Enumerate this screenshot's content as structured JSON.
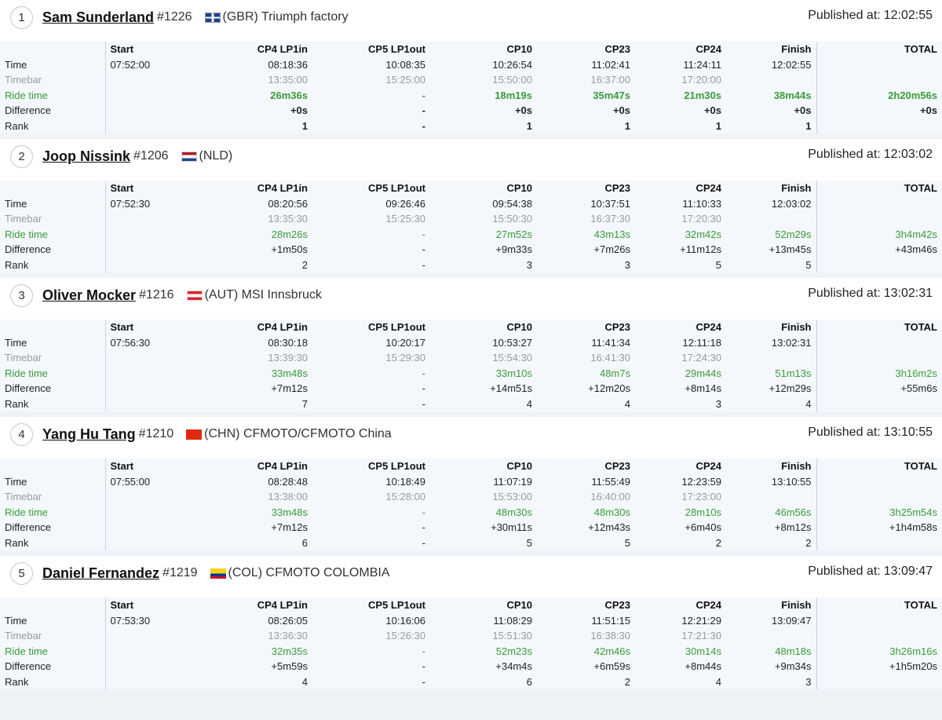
{
  "labels": {
    "published": "Published at:",
    "rows": [
      "Time",
      "Timebar",
      "Ride time",
      "Difference",
      "Rank"
    ]
  },
  "columns": [
    "Start",
    "CP4 LP1in",
    "CP5 LP1out",
    "CP10",
    "CP23",
    "CP24",
    "Finish",
    "TOTAL"
  ],
  "riders": [
    {
      "position": "1",
      "name": "Sam Sunderland",
      "number": "#1226",
      "flag": "gbr-flag-icon",
      "team": "(GBR) Triumph factory",
      "published": "12:02:55",
      "time": [
        "07:52:00",
        "08:18:36",
        "10:08:35",
        "10:26:54",
        "11:02:41",
        "11:24:11",
        "12:02:55",
        ""
      ],
      "timebar": [
        "",
        "13:35:00",
        "15:25:00",
        "15:50:00",
        "16:37:00",
        "17:20:00",
        "",
        ""
      ],
      "ride": [
        "",
        "26m36s",
        "-",
        "18m19s",
        "35m47s",
        "21m30s",
        "38m44s",
        "2h20m56s"
      ],
      "diff": [
        "",
        "+0s",
        "-",
        "+0s",
        "+0s",
        "+0s",
        "+0s",
        "+0s"
      ],
      "rank": [
        "",
        "1",
        "-",
        "1",
        "1",
        "1",
        "1",
        ""
      ]
    },
    {
      "position": "2",
      "name": "Joop Nissink",
      "number": "#1206",
      "flag": "nld-flag-icon",
      "team": "(NLD)",
      "published": "12:03:02",
      "time": [
        "07:52:30",
        "08:20:56",
        "09:26:46",
        "09:54:38",
        "10:37:51",
        "11:10:33",
        "12:03:02",
        ""
      ],
      "timebar": [
        "",
        "13:35:30",
        "15:25:30",
        "15:50:30",
        "16:37:30",
        "17:20:30",
        "",
        ""
      ],
      "ride": [
        "",
        "28m26s",
        "-",
        "27m52s",
        "43m13s",
        "32m42s",
        "52m29s",
        "3h4m42s"
      ],
      "diff": [
        "",
        "+1m50s",
        "-",
        "+9m33s",
        "+7m26s",
        "+11m12s",
        "+13m45s",
        "+43m46s"
      ],
      "rank": [
        "",
        "2",
        "-",
        "3",
        "3",
        "5",
        "5",
        ""
      ]
    },
    {
      "position": "3",
      "name": "Oliver Mocker",
      "number": "#1216",
      "flag": "aut-flag-icon",
      "team": "(AUT) MSI Innsbruck",
      "published": "13:02:31",
      "time": [
        "07:56:30",
        "08:30:18",
        "10:20:17",
        "10:53:27",
        "11:41:34",
        "12:11:18",
        "13:02:31",
        ""
      ],
      "timebar": [
        "",
        "13:39:30",
        "15:29:30",
        "15:54:30",
        "16:41:30",
        "17:24:30",
        "",
        ""
      ],
      "ride": [
        "",
        "33m48s",
        "-",
        "33m10s",
        "48m7s",
        "29m44s",
        "51m13s",
        "3h16m2s"
      ],
      "diff": [
        "",
        "+7m12s",
        "-",
        "+14m51s",
        "+12m20s",
        "+8m14s",
        "+12m29s",
        "+55m6s"
      ],
      "rank": [
        "",
        "7",
        "-",
        "4",
        "4",
        "3",
        "4",
        ""
      ]
    },
    {
      "position": "4",
      "name": "Yang Hu Tang",
      "number": "#1210",
      "flag": "chn-flag-icon",
      "team": "(CHN) CFMOTO/CFMOTO China",
      "published": "13:10:55",
      "time": [
        "07:55:00",
        "08:28:48",
        "10:18:49",
        "11:07:19",
        "11:55:49",
        "12:23:59",
        "13:10:55",
        ""
      ],
      "timebar": [
        "",
        "13:38:00",
        "15:28:00",
        "15:53:00",
        "16:40:00",
        "17:23:00",
        "",
        ""
      ],
      "ride": [
        "",
        "33m48s",
        "-",
        "48m30s",
        "48m30s",
        "28m10s",
        "46m56s",
        "3h25m54s"
      ],
      "diff": [
        "",
        "+7m12s",
        "-",
        "+30m11s",
        "+12m43s",
        "+6m40s",
        "+8m12s",
        "+1h4m58s"
      ],
      "rank": [
        "",
        "6",
        "-",
        "5",
        "5",
        "2",
        "2",
        ""
      ]
    },
    {
      "position": "5",
      "name": "Daniel Fernandez",
      "number": "#1219",
      "flag": "col-flag-icon",
      "team": "(COL) CFMOTO COLOMBIA",
      "published": "13:09:47",
      "time": [
        "07:53:30",
        "08:26:05",
        "10:16:06",
        "11:08:29",
        "11:51:15",
        "12:21:29",
        "13:09:47",
        ""
      ],
      "timebar": [
        "",
        "13:36:30",
        "15:26:30",
        "15:51:30",
        "16:38:30",
        "17:21:30",
        "",
        ""
      ],
      "ride": [
        "",
        "32m35s",
        "-",
        "52m23s",
        "42m46s",
        "30m14s",
        "48m18s",
        "3h26m16s"
      ],
      "diff": [
        "",
        "+5m59s",
        "-",
        "+34m4s",
        "+6m59s",
        "+8m44s",
        "+9m34s",
        "+1h5m20s"
      ],
      "rank": [
        "",
        "4",
        "-",
        "6",
        "2",
        "4",
        "3",
        ""
      ]
    }
  ]
}
